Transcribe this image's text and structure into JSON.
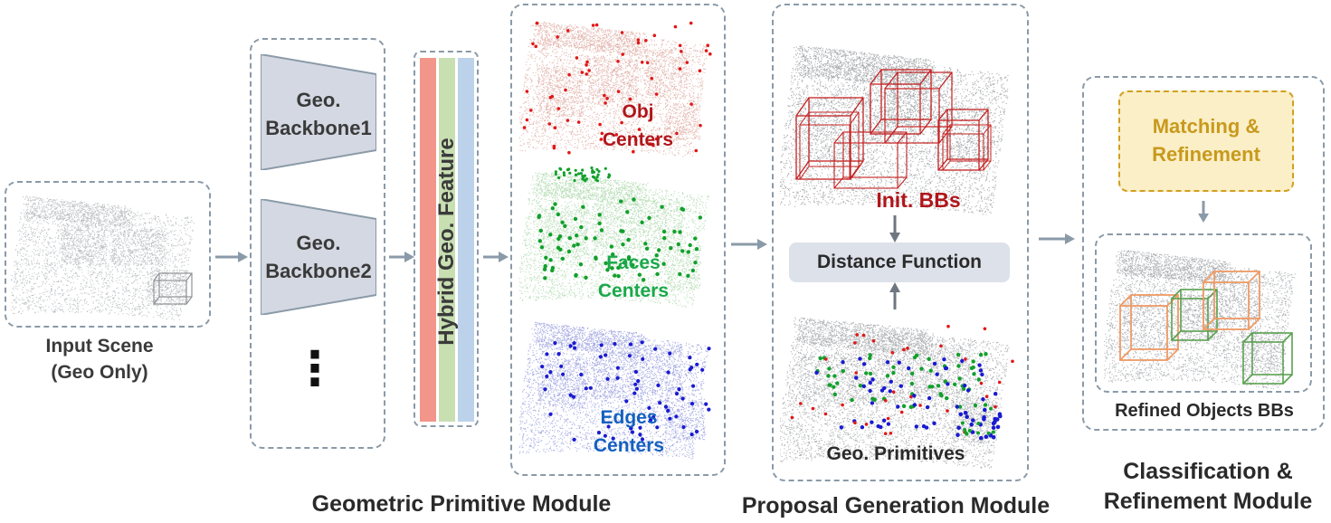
{
  "input": {
    "line1": "Input Scene",
    "line2": "(Geo Only)"
  },
  "backbones": [
    {
      "line1": "Geo.",
      "line2": "Backbone1"
    },
    {
      "line1": "Geo.",
      "line2": "Backbone2"
    }
  ],
  "ellipsis": "⋮",
  "hybrid_feature": "Hybrid Geo. Feature",
  "primitive_panels": [
    {
      "line1": "Obj",
      "line2": "Centers",
      "color": "#b0151a"
    },
    {
      "line1": "Faces",
      "line2": "Centers",
      "color": "#1aa84a"
    },
    {
      "line1": "Edges",
      "line2": "Centers",
      "color": "#1560c0"
    }
  ],
  "proposal": {
    "init_bbs": "Init. BBs",
    "distance_function": "Distance Function",
    "geo_primitives": "Geo. Primitives"
  },
  "refine": {
    "matching_line1": "Matching &",
    "matching_line2": "Refinement",
    "refined": "Refined Objects BBs"
  },
  "modules": {
    "geometric_primitive": "Geometric Primitive Module",
    "proposal_generation": "Proposal Generation Module",
    "classification_line1": "Classification &",
    "classification_line2": "Refinement Module"
  },
  "colors": {
    "dash_border": "#8a9aa8",
    "backbone_fill": "#d4d8e2",
    "bar_red": "#f2968c",
    "bar_green": "#c8dfb2",
    "bar_blue": "#bcd2ea",
    "matching_fill": "#fbefc8",
    "matching_border": "#d0a020",
    "matching_text": "#c89a1c",
    "distance_fill": "#dde1e9",
    "bbox_red": "#c42020",
    "bbox_orange": "#ef9a64",
    "bbox_green": "#5aa050"
  }
}
